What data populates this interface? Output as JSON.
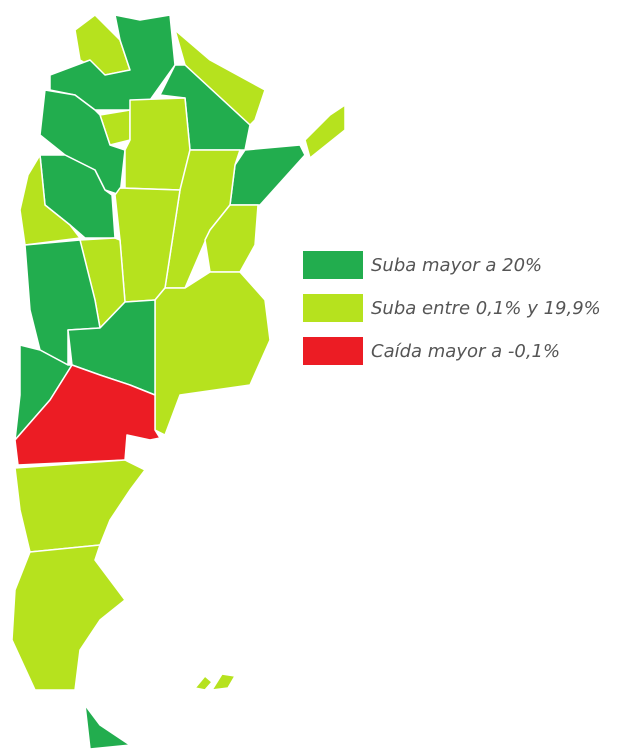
{
  "legend": {
    "items": [
      {
        "label": "Suba mayor a 20%",
        "color": "#22ad4e"
      },
      {
        "label": "Suba entre 0,1% y 19,9%",
        "color": "#b6e21e"
      },
      {
        "label": "Caída mayor a -0,1%",
        "color": "#ec1c24"
      }
    ]
  }
}
